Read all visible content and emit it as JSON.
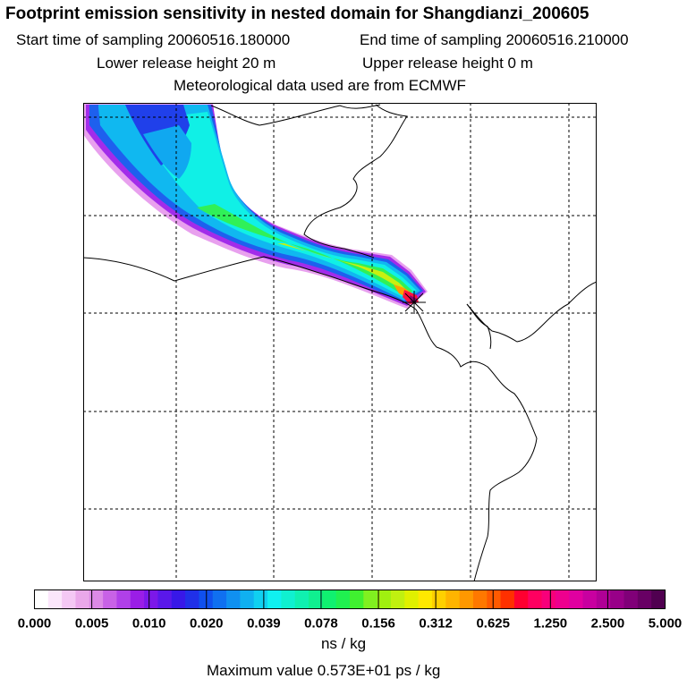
{
  "header": {
    "title": "Footprint emission sensitivity in nested domain for Shangdianzi_200605",
    "start_label": "Start time of sampling 20060516.180000",
    "end_label": "End time of sampling 20060516.210000",
    "lower_label": "Lower release height   20 m",
    "upper_label": "Upper release height    0 m",
    "met_label": "Meteorological data used are from ECMWF"
  },
  "map": {
    "background": "#ffffff",
    "grid_style": "dashed",
    "station_marker": "x-star"
  },
  "colorbar": {
    "tick_labels": [
      "0.000",
      "0.005",
      "0.010",
      "0.020",
      "0.039",
      "0.078",
      "0.156",
      "0.312",
      "0.625",
      "1.250",
      "2.500",
      "5.000"
    ],
    "unit": "ns / kg",
    "colors": [
      "#ffffff",
      "#fbe6fb",
      "#f4c8f4",
      "#eaa8ea",
      "#dc8ae6",
      "#c862e6",
      "#b040e8",
      "#9a1ee6",
      "#7c18e8",
      "#5a18ea",
      "#3818e8",
      "#2030e8",
      "#1050ee",
      "#1070f0",
      "#1090f0",
      "#10b0f0",
      "#10d0f0",
      "#10f0f0",
      "#10f0d0",
      "#10f0b0",
      "#10f090",
      "#10f070",
      "#20f050",
      "#40f030",
      "#80f020",
      "#a0f010",
      "#c0f010",
      "#e0f000",
      "#ffe800",
      "#ffd000",
      "#ffb400",
      "#ff9800",
      "#ff7800",
      "#ff5a00",
      "#ff3000",
      "#ff0030",
      "#ff0060",
      "#f8007a",
      "#ee008e",
      "#e000a0",
      "#c800a0",
      "#b00096",
      "#980088",
      "#800078",
      "#680064",
      "#500050"
    ]
  },
  "footer": {
    "max_value": "Maximum value  0.573E+01 ps / kg"
  }
}
